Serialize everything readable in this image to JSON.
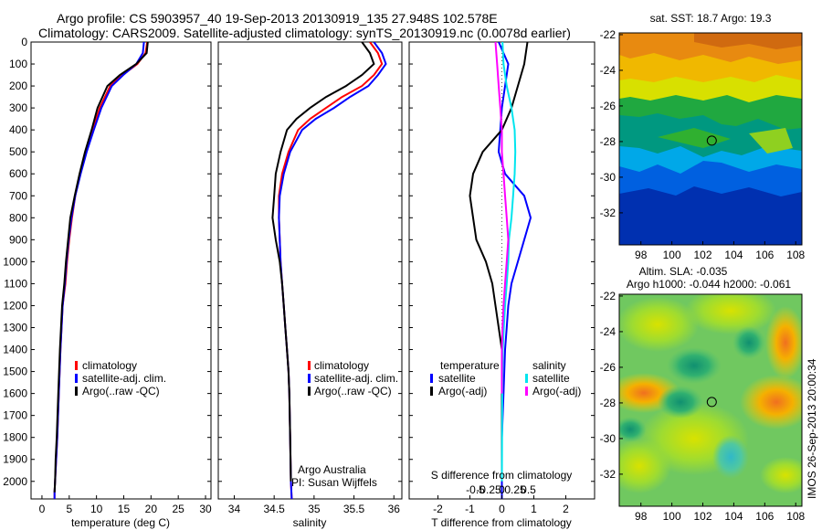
{
  "title": {
    "line1": "Argo profile: CS 5903957_40 19-Sep-2013 20130919_135 27.948S 102.578E",
    "line2": "Climatology: CARS2009. Satellite-adjusted climatology: synTS_20130919.nc (0.0078d earlier)"
  },
  "colors": {
    "climatology": "#ff0000",
    "satellite": "#0000ff",
    "argo": "#000000",
    "sat_sal": "#00e5ee",
    "argo_sal": "#ff00ff"
  },
  "depth_ticks": [
    0,
    100,
    200,
    300,
    400,
    500,
    600,
    700,
    800,
    900,
    1000,
    1100,
    1200,
    1300,
    1400,
    1500,
    1600,
    1700,
    1800,
    1900,
    2000
  ],
  "chart_data": [
    {
      "type": "line",
      "xlabel": "temperature (deg C)",
      "xlim": [
        -2,
        31
      ],
      "ylim": [
        2080,
        0
      ],
      "xticks": [
        0,
        5,
        10,
        15,
        20,
        25,
        30
      ],
      "legend": [
        "climatology",
        "satellite-adj. clim.",
        "Argo(..raw -QC)"
      ],
      "series": [
        {
          "name": "climatology",
          "x": [
            19.3,
            19.0,
            17.5,
            14.8,
            12.5,
            10.6,
            9.3,
            8.1,
            7.0,
            6.1,
            5.5,
            5.0,
            4.6,
            4.3,
            3.8,
            3.4,
            3.1,
            2.8,
            2.6,
            2.4,
            2.3,
            2.3
          ],
          "y": [
            0,
            50,
            100,
            150,
            200,
            300,
            400,
            500,
            600,
            700,
            800,
            900,
            1000,
            1100,
            1200,
            1400,
            1600,
            1800,
            1900,
            2000,
            2050,
            2080
          ]
        },
        {
          "name": "satellite-adj. clim.",
          "x": [
            18.7,
            18.5,
            17.3,
            14.9,
            12.8,
            10.9,
            9.5,
            8.2,
            7.1,
            6.1,
            5.4,
            4.9,
            4.5,
            4.2,
            3.8,
            3.4,
            3.1,
            2.8,
            2.6,
            2.4,
            2.3,
            2.3
          ],
          "y": [
            0,
            50,
            100,
            150,
            200,
            300,
            400,
            500,
            600,
            700,
            800,
            900,
            1000,
            1100,
            1200,
            1400,
            1600,
            1800,
            1900,
            2000,
            2050,
            2080
          ]
        },
        {
          "name": "Argo(..raw -QC)",
          "x": [
            19.4,
            19.2,
            17.3,
            14.3,
            12.0,
            10.2,
            9.1,
            7.9,
            6.9,
            6.0,
            5.2,
            4.8,
            4.4,
            4.1,
            3.7,
            3.3,
            3.0,
            2.7,
            2.5,
            2.4,
            2.3
          ],
          "y": [
            0,
            50,
            100,
            150,
            200,
            300,
            400,
            500,
            600,
            700,
            800,
            900,
            1000,
            1100,
            1200,
            1400,
            1600,
            1800,
            1900,
            2000,
            2050
          ]
        }
      ]
    },
    {
      "type": "line",
      "xlabel": "salinity",
      "xlim": [
        33.8,
        36.1
      ],
      "ylim": [
        2080,
        0
      ],
      "xticks": [
        34,
        34.5,
        35,
        35.5,
        36
      ],
      "legend": [
        "climatology",
        "satellite-adj. clim.",
        "Argo(..raw -QC)"
      ],
      "annotations": [
        "Argo Australia",
        "PI: Susan Wijffels"
      ],
      "series": [
        {
          "name": "climatology",
          "x": [
            35.7,
            35.8,
            35.85,
            35.75,
            35.6,
            35.35,
            35.15,
            34.95,
            34.8,
            34.68,
            34.6,
            34.56,
            34.56,
            34.57,
            34.58,
            34.6,
            34.62,
            34.64,
            34.66,
            34.68,
            34.69,
            34.7,
            34.71,
            34.72
          ],
          "y": [
            0,
            50,
            100,
            150,
            200,
            250,
            300,
            350,
            400,
            500,
            600,
            700,
            800,
            900,
            1000,
            1100,
            1200,
            1300,
            1400,
            1500,
            1600,
            1800,
            2000,
            2080
          ]
        },
        {
          "name": "satellite-adj. clim.",
          "x": [
            35.75,
            35.85,
            35.9,
            35.8,
            35.68,
            35.45,
            35.25,
            35.02,
            34.85,
            34.7,
            34.62,
            34.57,
            34.56,
            34.57,
            34.58,
            34.6,
            34.62,
            34.64,
            34.66,
            34.68,
            34.69,
            34.7,
            34.71,
            34.72
          ],
          "y": [
            0,
            50,
            100,
            150,
            200,
            250,
            300,
            350,
            400,
            500,
            600,
            700,
            800,
            900,
            1000,
            1100,
            1200,
            1300,
            1400,
            1500,
            1600,
            1800,
            2000,
            2080
          ]
        },
        {
          "name": "Argo(..raw -QC)",
          "x": [
            35.6,
            35.7,
            35.75,
            35.6,
            35.4,
            35.15,
            34.95,
            34.78,
            34.66,
            34.58,
            34.52,
            34.5,
            34.48,
            34.52,
            34.57,
            34.6,
            34.62,
            34.64,
            34.66,
            34.68,
            34.69,
            34.7,
            34.71
          ],
          "y": [
            0,
            50,
            100,
            150,
            200,
            250,
            300,
            350,
            400,
            500,
            600,
            700,
            800,
            900,
            1000,
            1100,
            1200,
            1300,
            1400,
            1500,
            1600,
            1800,
            2000
          ]
        }
      ]
    },
    {
      "type": "line",
      "xlabel": "T difference from climatology",
      "xlabel2": "S difference from climatology",
      "xlim": [
        -2.9,
        2.9
      ],
      "ylim": [
        2080,
        0
      ],
      "xticks": [
        -2,
        -1,
        0,
        1,
        2
      ],
      "xticklabels": [
        "-2",
        "-1",
        "0",
        "1",
        "2"
      ],
      "top_ticks": [
        -0.5,
        -0.25,
        0,
        0.25,
        0.5
      ],
      "top_ticklabels": [
        "-0.5",
        "-0.25",
        "0",
        "0.25",
        "0.5"
      ],
      "legend_t_title": "temperature",
      "legend_s_title": "salinity",
      "legend": [
        "satellite",
        "Argo(-adj)",
        "satellite",
        "Argo(-adj)"
      ],
      "series": [
        {
          "name": "temperature satellite",
          "x": [
            -0.1,
            0.2,
            0.1,
            0,
            -0.1,
            0.1,
            0.4,
            0.7,
            0.9,
            0.7,
            0.5,
            0.3,
            0.2,
            0.15,
            0.1,
            0.05,
            0,
            0,
            0
          ],
          "y": [
            0,
            100,
            200,
            300,
            500,
            600,
            650,
            700,
            800,
            900,
            1000,
            1100,
            1200,
            1300,
            1400,
            1600,
            1800,
            2000,
            2080
          ]
        },
        {
          "name": "temperature Argo(-adj)",
          "x": [
            0.8,
            0.7,
            0.5,
            0.3,
            0,
            -0.6,
            -0.9,
            -1.0,
            -0.9,
            -0.8,
            -0.5,
            -0.3,
            -0.2,
            -0.1,
            0,
            0,
            0
          ],
          "y": [
            0,
            100,
            200,
            300,
            400,
            500,
            600,
            700,
            800,
            900,
            1000,
            1100,
            1200,
            1300,
            1400,
            1800,
            2000
          ]
        },
        {
          "name": "salinity satellite",
          "x": [
            0.02,
            0.05,
            0.15,
            0.3,
            0.4,
            0.42,
            0.4,
            0.35,
            0.3,
            0.22,
            0.2,
            0.15,
            0.1,
            0.06,
            0.03,
            0.01,
            0
          ],
          "y": [
            0,
            100,
            200,
            300,
            400,
            500,
            600,
            700,
            800,
            900,
            1000,
            1100,
            1200,
            1300,
            1400,
            1600,
            2000
          ]
        },
        {
          "name": "salinity Argo(-adj)",
          "x": [
            -0.2,
            -0.15,
            -0.1,
            -0.05,
            0,
            0,
            0.05,
            0.1,
            0.15,
            0.2,
            0.15,
            0.1,
            0.05,
            0.02,
            0,
            0
          ],
          "y": [
            0,
            100,
            200,
            300,
            400,
            500,
            600,
            700,
            800,
            900,
            1000,
            1100,
            1200,
            1300,
            1400,
            1600
          ]
        }
      ]
    },
    {
      "type": "heatmap",
      "title": "sat. SST: 18.7 Argo: 19.3",
      "xlim": [
        96.6,
        108.4
      ],
      "ylim": [
        -33.8,
        -21.9
      ],
      "xticks": [
        98,
        100,
        102,
        104,
        106,
        108
      ],
      "yticks": [
        -22,
        -24,
        -26,
        -28,
        -30,
        -32
      ],
      "marker": [
        102.578,
        -27.948
      ]
    },
    {
      "type": "heatmap",
      "title": "Altim. SLA: -0.035",
      "subtitle": "Argo h1000: -0.044 h2000: -0.061",
      "xlim": [
        96.6,
        108.4
      ],
      "ylim": [
        -33.8,
        -21.9
      ],
      "xticks": [
        98,
        100,
        102,
        104,
        106,
        108
      ],
      "yticks": [
        -22,
        -24,
        -26,
        -28,
        -30,
        -32
      ],
      "marker": [
        102.578,
        -27.948
      ]
    }
  ],
  "watermark": "IMOS 26-Sep-2013 20:00:34"
}
